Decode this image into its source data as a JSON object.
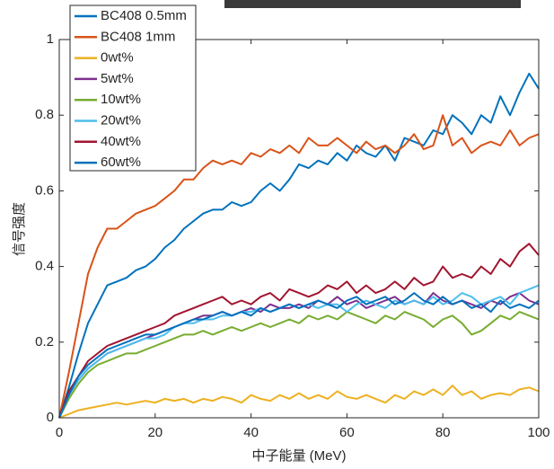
{
  "chart_data": {
    "type": "line",
    "xlabel": "中子能量 (MeV)",
    "ylabel": "信号强度",
    "x": [
      0,
      2,
      4,
      6,
      8,
      10,
      12,
      14,
      16,
      18,
      20,
      22,
      24,
      26,
      28,
      30,
      32,
      34,
      36,
      38,
      40,
      42,
      44,
      46,
      48,
      50,
      52,
      54,
      56,
      58,
      60,
      62,
      64,
      66,
      68,
      70,
      72,
      74,
      76,
      78,
      80,
      82,
      84,
      86,
      88,
      90,
      92,
      94,
      96,
      98,
      100
    ],
    "xlim": [
      0,
      100
    ],
    "xticks": [
      0,
      20,
      40,
      60,
      80,
      100
    ],
    "ylim": [
      0,
      1
    ],
    "yticks": [
      0,
      0.2,
      0.4,
      0.6,
      0.8,
      1
    ],
    "legend": "upper-left",
    "series": [
      {
        "name": "BC408 0.5mm",
        "color": "#0072bd",
        "values": [
          0,
          0.08,
          0.17,
          0.25,
          0.3,
          0.35,
          0.36,
          0.37,
          0.39,
          0.4,
          0.42,
          0.45,
          0.47,
          0.5,
          0.52,
          0.54,
          0.55,
          0.55,
          0.57,
          0.56,
          0.57,
          0.6,
          0.62,
          0.6,
          0.63,
          0.67,
          0.66,
          0.68,
          0.67,
          0.7,
          0.68,
          0.72,
          0.7,
          0.69,
          0.72,
          0.68,
          0.74,
          0.73,
          0.72,
          0.76,
          0.75,
          0.8,
          0.78,
          0.75,
          0.8,
          0.78,
          0.85,
          0.8,
          0.86,
          0.91,
          0.87
        ]
      },
      {
        "name": "BC408 1mm",
        "color": "#d95319",
        "values": [
          0,
          0.12,
          0.25,
          0.38,
          0.45,
          0.5,
          0.5,
          0.52,
          0.54,
          0.55,
          0.56,
          0.58,
          0.6,
          0.63,
          0.63,
          0.66,
          0.68,
          0.67,
          0.68,
          0.67,
          0.7,
          0.69,
          0.71,
          0.7,
          0.72,
          0.7,
          0.74,
          0.72,
          0.72,
          0.74,
          0.72,
          0.7,
          0.73,
          0.71,
          0.72,
          0.7,
          0.72,
          0.75,
          0.71,
          0.72,
          0.8,
          0.72,
          0.74,
          0.7,
          0.72,
          0.73,
          0.72,
          0.76,
          0.72,
          0.74,
          0.75
        ]
      },
      {
        "name": "0wt%",
        "color": "#edb120",
        "values": [
          0,
          0.01,
          0.02,
          0.025,
          0.03,
          0.035,
          0.04,
          0.035,
          0.04,
          0.045,
          0.04,
          0.05,
          0.045,
          0.05,
          0.04,
          0.05,
          0.045,
          0.055,
          0.05,
          0.04,
          0.06,
          0.05,
          0.045,
          0.06,
          0.05,
          0.065,
          0.05,
          0.06,
          0.05,
          0.07,
          0.055,
          0.05,
          0.06,
          0.05,
          0.04,
          0.06,
          0.05,
          0.07,
          0.06,
          0.075,
          0.06,
          0.085,
          0.06,
          0.07,
          0.05,
          0.06,
          0.065,
          0.06,
          0.075,
          0.08,
          0.07
        ]
      },
      {
        "name": "5wt%",
        "color": "#7e2f8e",
        "values": [
          0,
          0.06,
          0.1,
          0.13,
          0.15,
          0.17,
          0.18,
          0.19,
          0.2,
          0.21,
          0.22,
          0.23,
          0.24,
          0.25,
          0.26,
          0.27,
          0.27,
          0.28,
          0.27,
          0.28,
          0.29,
          0.28,
          0.3,
          0.29,
          0.29,
          0.3,
          0.29,
          0.31,
          0.3,
          0.32,
          0.3,
          0.31,
          0.29,
          0.3,
          0.31,
          0.32,
          0.3,
          0.31,
          0.3,
          0.33,
          0.31,
          0.3,
          0.31,
          0.3,
          0.29,
          0.31,
          0.3,
          0.32,
          0.33,
          0.31,
          0.3
        ]
      },
      {
        "name": "10wt%",
        "color": "#77ac30",
        "values": [
          0,
          0.05,
          0.09,
          0.12,
          0.14,
          0.15,
          0.16,
          0.17,
          0.17,
          0.18,
          0.19,
          0.2,
          0.21,
          0.22,
          0.22,
          0.23,
          0.22,
          0.23,
          0.24,
          0.23,
          0.24,
          0.25,
          0.24,
          0.25,
          0.26,
          0.25,
          0.27,
          0.26,
          0.27,
          0.26,
          0.28,
          0.27,
          0.26,
          0.25,
          0.27,
          0.26,
          0.28,
          0.27,
          0.26,
          0.24,
          0.26,
          0.27,
          0.25,
          0.22,
          0.23,
          0.25,
          0.27,
          0.26,
          0.28,
          0.27,
          0.26
        ]
      },
      {
        "name": "20wt%",
        "color": "#4dbeee",
        "values": [
          0,
          0.06,
          0.1,
          0.13,
          0.15,
          0.17,
          0.18,
          0.19,
          0.2,
          0.21,
          0.21,
          0.22,
          0.24,
          0.25,
          0.25,
          0.26,
          0.26,
          0.27,
          0.27,
          0.28,
          0.28,
          0.29,
          0.28,
          0.29,
          0.3,
          0.29,
          0.3,
          0.29,
          0.3,
          0.3,
          0.28,
          0.3,
          0.31,
          0.3,
          0.29,
          0.31,
          0.3,
          0.31,
          0.3,
          0.32,
          0.3,
          0.31,
          0.33,
          0.32,
          0.3,
          0.31,
          0.32,
          0.3,
          0.33,
          0.34,
          0.35
        ]
      },
      {
        "name": "40wt%",
        "color": "#a2142f",
        "values": [
          0,
          0.07,
          0.11,
          0.15,
          0.17,
          0.19,
          0.2,
          0.21,
          0.22,
          0.23,
          0.24,
          0.25,
          0.27,
          0.28,
          0.29,
          0.3,
          0.31,
          0.32,
          0.3,
          0.31,
          0.3,
          0.32,
          0.33,
          0.31,
          0.34,
          0.33,
          0.32,
          0.33,
          0.35,
          0.34,
          0.36,
          0.33,
          0.35,
          0.33,
          0.34,
          0.36,
          0.34,
          0.37,
          0.35,
          0.36,
          0.4,
          0.37,
          0.38,
          0.37,
          0.4,
          0.38,
          0.42,
          0.4,
          0.44,
          0.46,
          0.43
        ]
      },
      {
        "name": "60wt%",
        "color": "#0072bd",
        "values": [
          0,
          0.06,
          0.11,
          0.14,
          0.16,
          0.18,
          0.19,
          0.2,
          0.21,
          0.22,
          0.22,
          0.23,
          0.24,
          0.25,
          0.26,
          0.26,
          0.27,
          0.28,
          0.27,
          0.28,
          0.27,
          0.29,
          0.28,
          0.29,
          0.3,
          0.29,
          0.3,
          0.31,
          0.3,
          0.29,
          0.31,
          0.32,
          0.3,
          0.31,
          0.32,
          0.3,
          0.31,
          0.33,
          0.31,
          0.3,
          0.32,
          0.3,
          0.31,
          0.29,
          0.3,
          0.28,
          0.31,
          0.29,
          0.3,
          0.29,
          0.31
        ]
      }
    ]
  }
}
